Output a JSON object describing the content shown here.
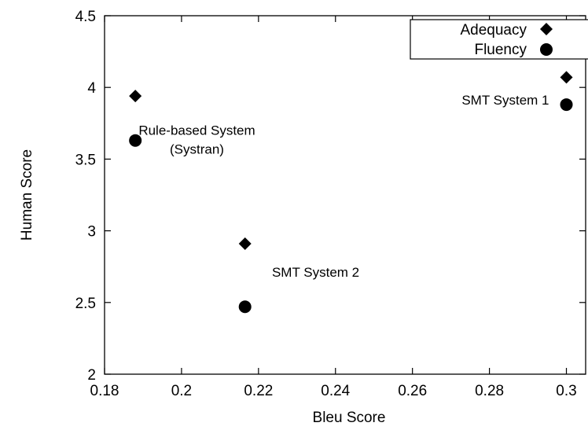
{
  "chart_data": {
    "type": "scatter",
    "title": "",
    "xlabel": "Bleu Score",
    "ylabel": "Human Score",
    "xlim": [
      0.18,
      0.305
    ],
    "ylim": [
      2,
      4.5
    ],
    "xticks": [
      0.18,
      0.2,
      0.22,
      0.24,
      0.26,
      0.28,
      0.3
    ],
    "xtick_labels": [
      "0.18",
      "0.2",
      "0.22",
      "0.24",
      "0.26",
      "0.28",
      "0.3"
    ],
    "yticks": [
      2,
      2.5,
      3,
      3.5,
      4,
      4.5
    ],
    "ytick_labels": [
      "2",
      "2.5",
      "3",
      "3.5",
      "4",
      "4.5"
    ],
    "grid": false,
    "legend_position": "top-right",
    "series": [
      {
        "name": "Adequacy",
        "marker": "diamond",
        "color": "#000000",
        "points": [
          {
            "x": 0.188,
            "y": 3.94
          },
          {
            "x": 0.2165,
            "y": 2.91
          },
          {
            "x": 0.3,
            "y": 4.07
          }
        ]
      },
      {
        "name": "Fluency",
        "marker": "circle",
        "color": "#000000",
        "points": [
          {
            "x": 0.188,
            "y": 3.63
          },
          {
            "x": 0.2165,
            "y": 2.47
          },
          {
            "x": 0.3,
            "y": 3.88
          }
        ]
      }
    ],
    "annotations": [
      {
        "lines": [
          "Rule-based System",
          "(Systran)"
        ],
        "x": 0.204,
        "y": 3.67,
        "anchor": "middle"
      },
      {
        "lines": [
          "SMT System 2"
        ],
        "x": 0.2235,
        "y": 2.68,
        "anchor": "start"
      },
      {
        "lines": [
          "SMT System 1"
        ],
        "x": 0.2955,
        "y": 3.88,
        "anchor": "end"
      }
    ]
  }
}
